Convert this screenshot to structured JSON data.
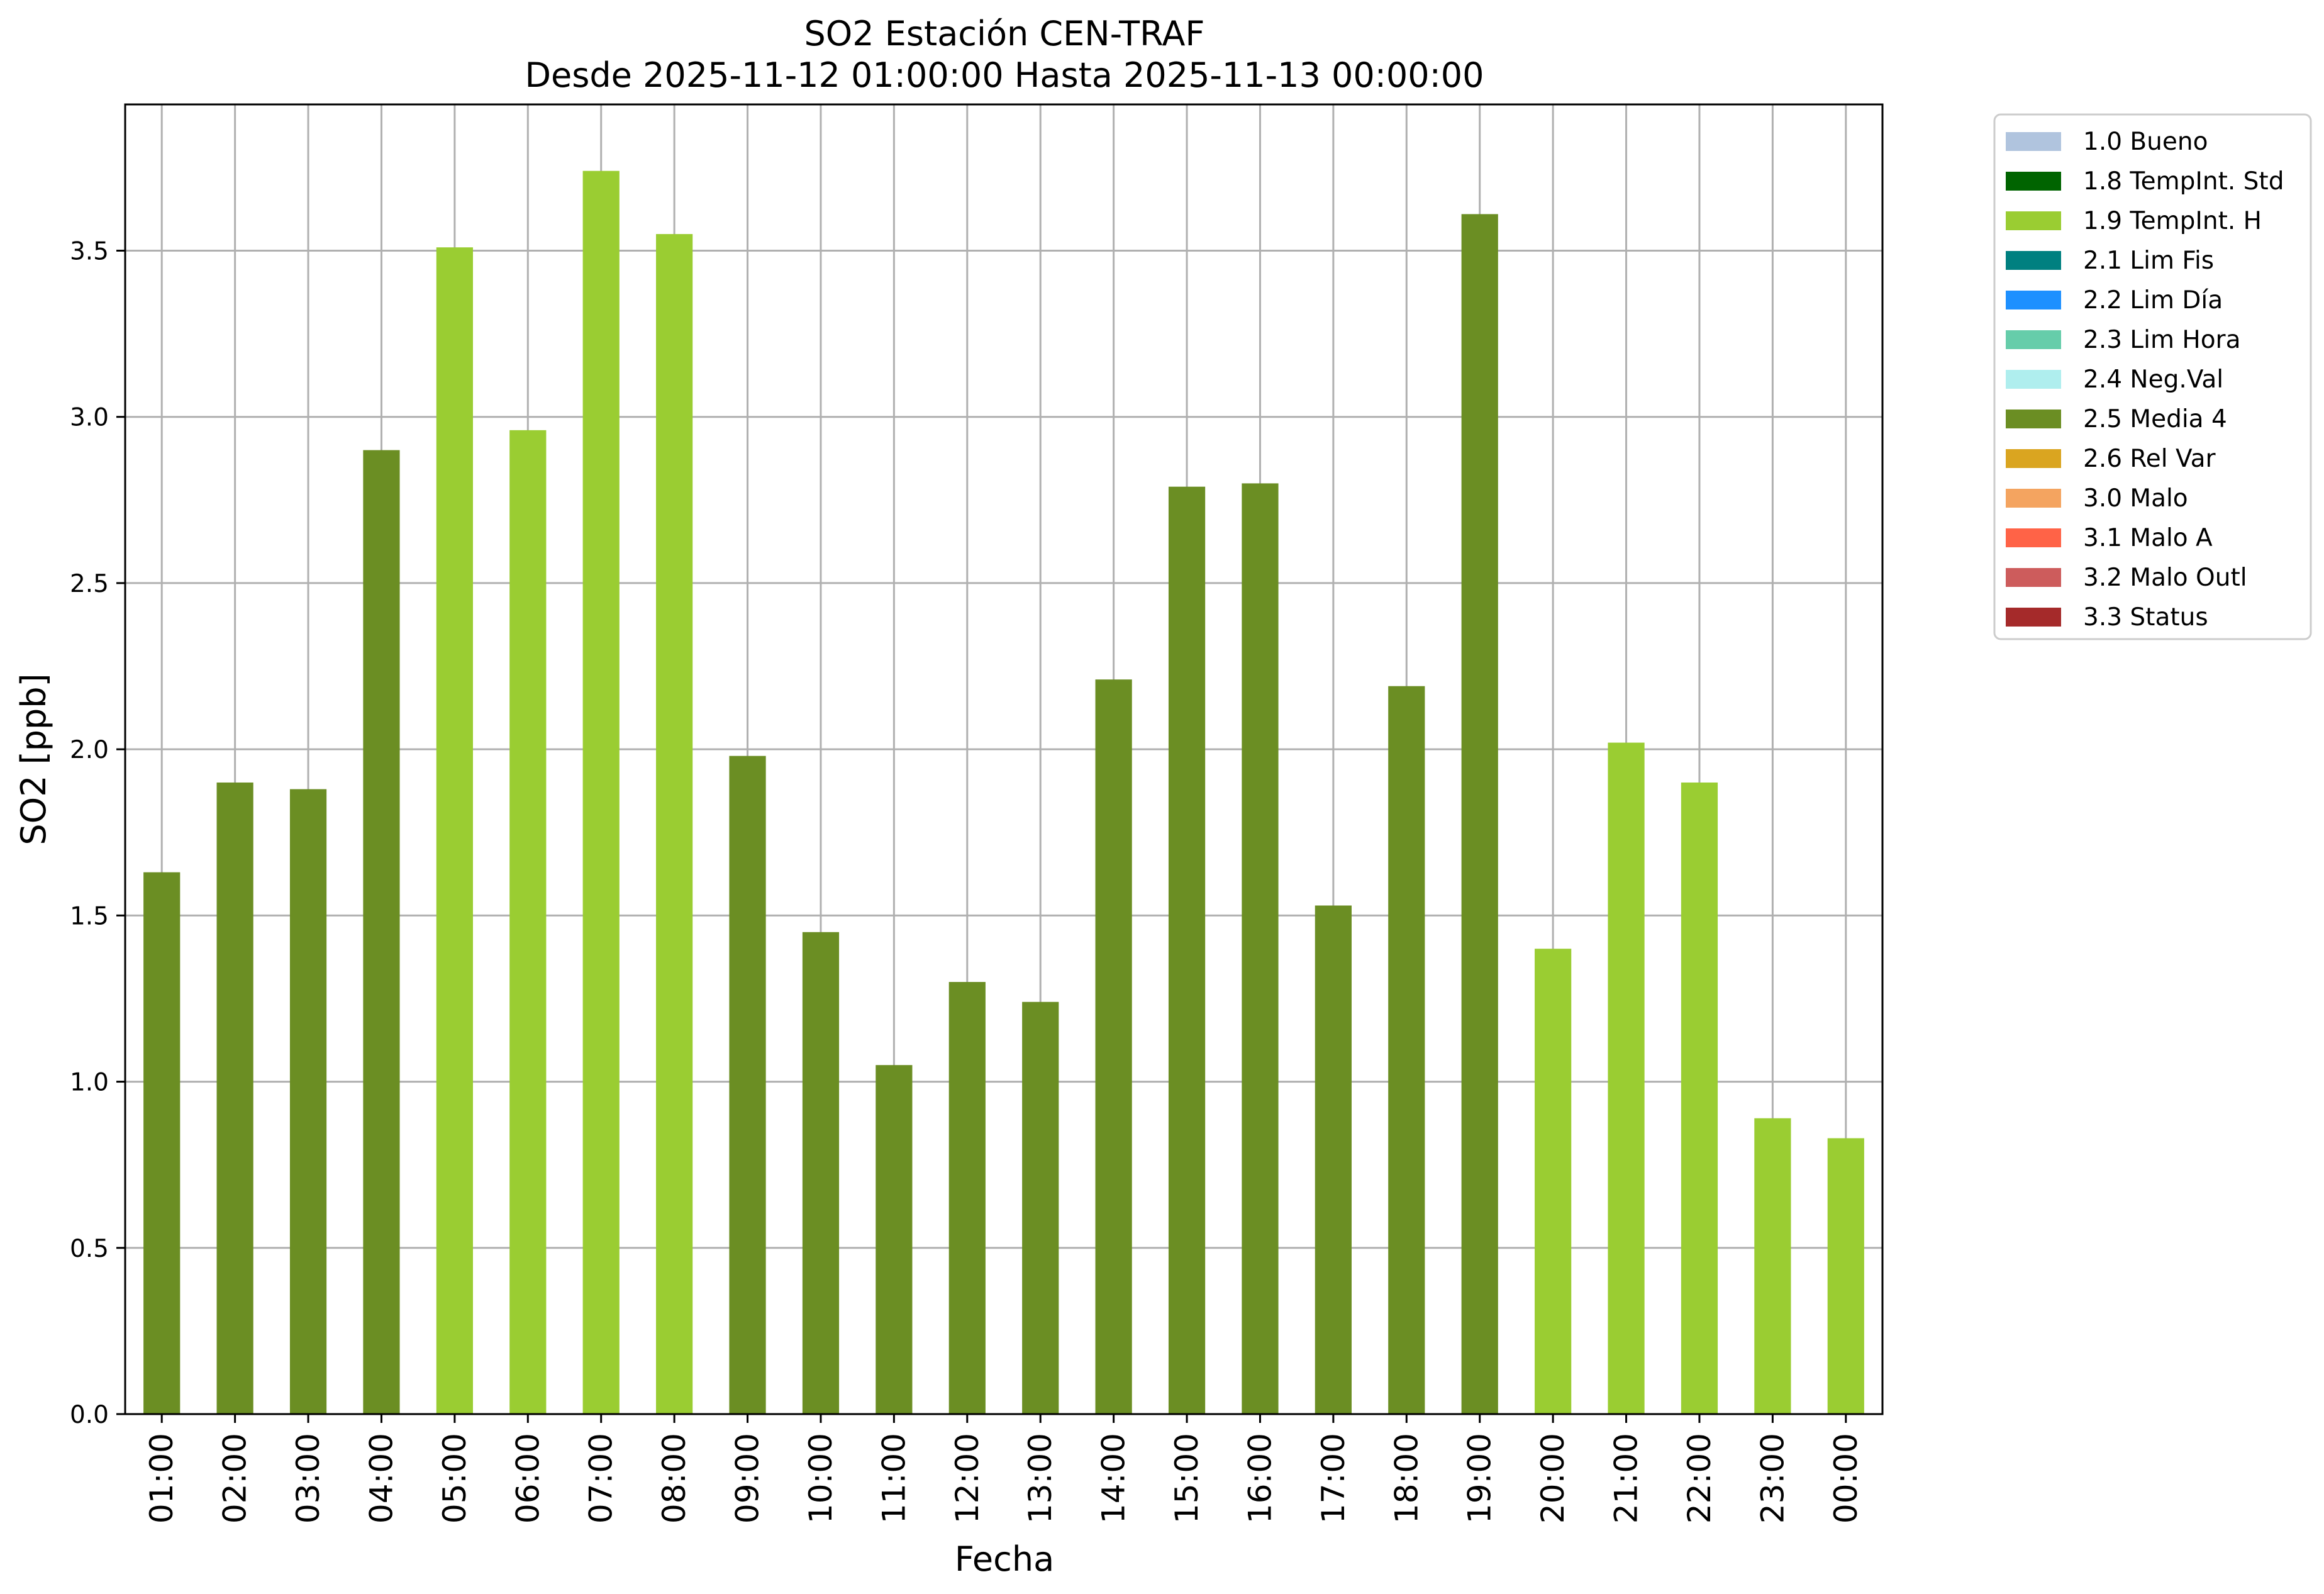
{
  "chart_data": {
    "type": "bar",
    "title": "SO2 Estación CEN-TRAF",
    "subtitle": "Desde 2025-11-12 01:00:00 Hasta 2025-11-13 00:00:00",
    "xlabel": "Fecha",
    "ylabel": "SO2 [ppb]",
    "ylim": [
      0,
      3.94
    ],
    "yticks": [
      "0.0",
      "0.5",
      "1.0",
      "1.5",
      "2.0",
      "2.5",
      "3.0",
      "3.5"
    ],
    "grid": true,
    "legend_position": "outside-right-top",
    "categories": [
      "01:00",
      "02:00",
      "03:00",
      "04:00",
      "05:00",
      "06:00",
      "07:00",
      "08:00",
      "09:00",
      "10:00",
      "11:00",
      "12:00",
      "13:00",
      "14:00",
      "15:00",
      "16:00",
      "17:00",
      "18:00",
      "19:00",
      "20:00",
      "21:00",
      "22:00",
      "23:00",
      "00:00"
    ],
    "values": [
      1.63,
      1.9,
      1.88,
      2.9,
      3.51,
      2.96,
      3.74,
      3.55,
      1.98,
      1.45,
      1.05,
      1.3,
      1.24,
      2.21,
      2.79,
      2.8,
      1.53,
      2.19,
      3.61,
      1.4,
      2.02,
      1.9,
      0.89,
      0.83
    ],
    "flags": [
      "2.5 Media 4",
      "2.5 Media 4",
      "2.5 Media 4",
      "2.5 Media 4",
      "1.9 TempInt. H",
      "1.9 TempInt. H",
      "1.9 TempInt. H",
      "1.9 TempInt. H",
      "2.5 Media 4",
      "2.5 Media 4",
      "2.5 Media 4",
      "2.5 Media 4",
      "2.5 Media 4",
      "2.5 Media 4",
      "2.5 Media 4",
      "2.5 Media 4",
      "2.5 Media 4",
      "2.5 Media 4",
      "2.5 Media 4",
      "1.9 TempInt. H",
      "1.9 TempInt. H",
      "1.9 TempInt. H",
      "1.9 TempInt. H",
      "1.9 TempInt. H"
    ],
    "legend": [
      {
        "label": "1.0 Bueno",
        "color": "#b0c4de"
      },
      {
        "label": "1.8 TempInt. Std",
        "color": "#006400"
      },
      {
        "label": "1.9 TempInt. H",
        "color": "#9acd32"
      },
      {
        "label": "2.1 Lim Fis",
        "color": "#008080"
      },
      {
        "label": "2.2 Lim Día",
        "color": "#1e90ff"
      },
      {
        "label": "2.3 Lim Hora",
        "color": "#66cdaa"
      },
      {
        "label": "2.4 Neg.Val",
        "color": "#afeeee"
      },
      {
        "label": "2.5 Media 4",
        "color": "#6b8e23"
      },
      {
        "label": "2.6 Rel Var",
        "color": "#daa520"
      },
      {
        "label": "3.0 Malo",
        "color": "#f4a460"
      },
      {
        "label": "3.1 Malo A",
        "color": "#ff6347"
      },
      {
        "label": "3.2 Malo Outl",
        "color": "#cd5c5c"
      },
      {
        "label": "3.3 Status",
        "color": "#a52a2a"
      }
    ]
  }
}
